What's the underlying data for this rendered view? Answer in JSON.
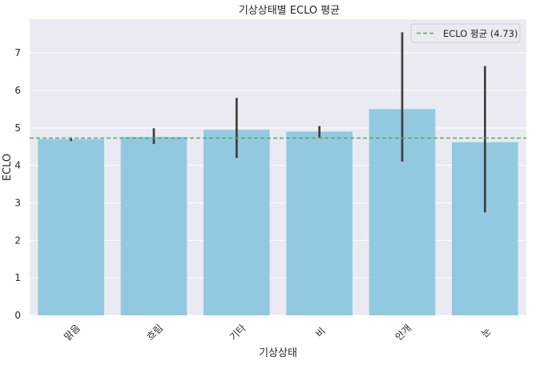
{
  "chart_data": {
    "type": "bar",
    "title": "기상상태별 ECLO 평균",
    "xlabel": "기상상태",
    "ylabel": "ECLO",
    "categories": [
      "맑음",
      "흐림",
      "기타",
      "비",
      "안개",
      "눈"
    ],
    "values": [
      4.7,
      4.76,
      4.95,
      4.9,
      5.5,
      4.62
    ],
    "error_low": [
      4.65,
      4.57,
      4.2,
      4.75,
      4.1,
      2.75
    ],
    "error_high": [
      4.75,
      4.99,
      5.8,
      5.05,
      7.55,
      6.65
    ],
    "ylim": [
      0,
      7.9
    ],
    "yticks": [
      0,
      1,
      2,
      3,
      4,
      5,
      6,
      7
    ],
    "ytick_labels": [
      "0",
      "1",
      "2",
      "3",
      "4",
      "5",
      "6",
      "7"
    ],
    "mean_line": {
      "value": 4.73,
      "label": "ECLO 평균 (4.73)"
    },
    "legend_position": "top-right",
    "grid": true,
    "colors": {
      "bar": "#92c9e0",
      "error_bar": "#3f3f3f",
      "mean_line": "#55a868",
      "plot_bg": "#eaeaf2",
      "grid": "#ffffff"
    }
  }
}
